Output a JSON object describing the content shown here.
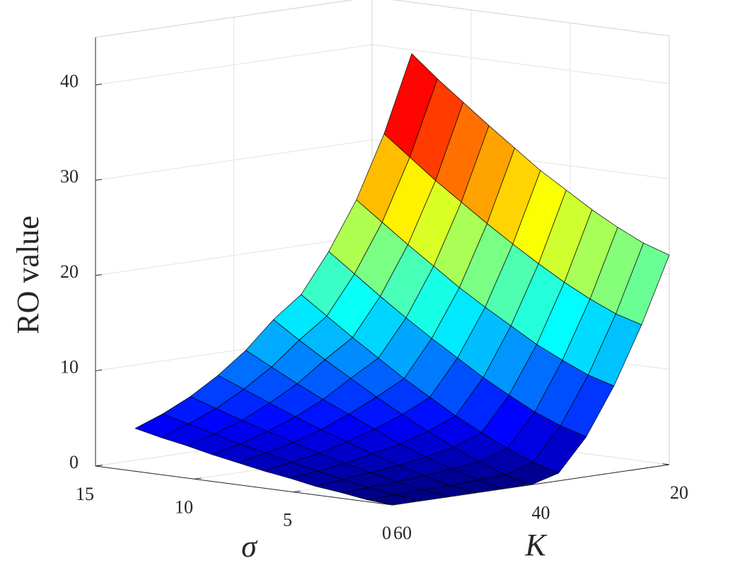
{
  "chart_data": {
    "type": "surface",
    "xlabel": "σ",
    "ylabel": "K",
    "zlabel": "RO value",
    "x": [
      0,
      1.3,
      2.6,
      3.9,
      5.2,
      6.5,
      7.8,
      9.1,
      10.4,
      11.7,
      13
    ],
    "y": [
      20,
      24,
      28,
      32,
      36,
      40,
      44,
      48,
      52,
      56,
      60
    ],
    "z": [
      [
        22,
        15.1,
        9.1,
        4.2,
        0.8,
        0,
        0,
        0,
        0,
        0,
        0
      ],
      [
        22.9,
        15.9,
        9.9,
        5.0,
        1.6,
        0.7,
        0.6,
        0.4,
        0.4,
        0.3,
        0.2
      ],
      [
        24.2,
        17.1,
        11.1,
        6.1,
        2.7,
        1.7,
        1.4,
        1.1,
        0.9,
        0.7,
        0.6
      ],
      [
        25.7,
        18.5,
        12.4,
        7.5,
        4.0,
        2.9,
        2.3,
        1.8,
        1.5,
        1.2,
        0.9
      ],
      [
        27.4,
        20.1,
        14.0,
        9.0,
        5.4,
        4.2,
        3.3,
        2.7,
        2.1,
        1.7,
        1.4
      ],
      [
        29.1,
        21.8,
        15.6,
        10.7,
        7.0,
        5.6,
        4.5,
        3.6,
        2.8,
        2.3,
        1.8
      ],
      [
        31.1,
        23.6,
        17.3,
        12.4,
        8.6,
        7.1,
        5.7,
        4.5,
        3.6,
        2.9,
        2.3
      ],
      [
        33.1,
        25.5,
        19.2,
        14.2,
        10.4,
        8.7,
        6.9,
        5.5,
        4.4,
        3.5,
        2.8
      ],
      [
        35.2,
        27.4,
        21.1,
        16.1,
        12.2,
        10.3,
        8.2,
        6.6,
        5.2,
        4.2,
        3.4
      ],
      [
        37.3,
        29.5,
        23.1,
        18.1,
        14.1,
        12.0,
        9.6,
        7.7,
        6.1,
        4.9,
        3.9
      ],
      [
        39.6,
        31.6,
        25.1,
        20.1,
        16.0,
        13.8,
        11.0,
        8.8,
        7.0,
        5.6,
        4.5
      ]
    ],
    "xlim": [
      0,
      15
    ],
    "ylim": [
      20,
      60
    ],
    "zlim": [
      0,
      45
    ],
    "xticks": [
      0,
      5,
      10,
      15
    ],
    "yticks": [
      20,
      40,
      60
    ],
    "zticks": [
      0,
      10,
      20,
      30,
      40
    ],
    "colormap": "jet",
    "grid": true
  }
}
